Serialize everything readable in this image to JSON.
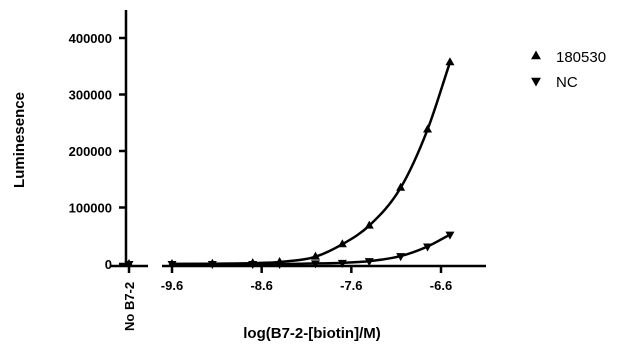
{
  "chart_data": {
    "type": "scatter",
    "title": "",
    "xlabel": "log(B7-2-[biotin]/M)",
    "ylabel": "Luminesence",
    "xlim": [
      -9.9,
      -6.1
    ],
    "ylim": [
      0,
      450000
    ],
    "x_ticks": [
      -9.6,
      -8.6,
      -7.6,
      -6.6
    ],
    "x_tick_labels": [
      "-9.6",
      "-8.6",
      "-7.6",
      "-6.6"
    ],
    "y_ticks": [
      0,
      100000,
      200000,
      300000,
      400000
    ],
    "y_tick_labels": [
      "0",
      "100000",
      "200000",
      "300000",
      "400000"
    ],
    "control_label": "No B7-2",
    "legend_position": "top-right",
    "grid": false,
    "series": [
      {
        "name": "180530",
        "marker": "triangle-up",
        "color": "#000000",
        "x": [
          -9.6,
          -9.15,
          -8.7,
          -8.4,
          -8.0,
          -7.7,
          -7.4,
          -7.05,
          -6.75,
          -6.5
        ],
        "y": [
          0,
          500,
          1500,
          3500,
          13000,
          35000,
          68000,
          135000,
          238000,
          357000
        ],
        "control_y": 0,
        "fit_curve": true
      },
      {
        "name": "NC",
        "marker": "triangle-down",
        "color": "#000000",
        "x": [
          -9.6,
          -9.15,
          -8.7,
          -8.4,
          -8.0,
          -7.7,
          -7.4,
          -7.05,
          -6.75,
          -6.5
        ],
        "y": [
          0,
          0,
          0,
          0,
          1000,
          2000,
          5000,
          14000,
          31000,
          52000
        ],
        "control_y": 0,
        "fit_curve": true
      }
    ]
  }
}
